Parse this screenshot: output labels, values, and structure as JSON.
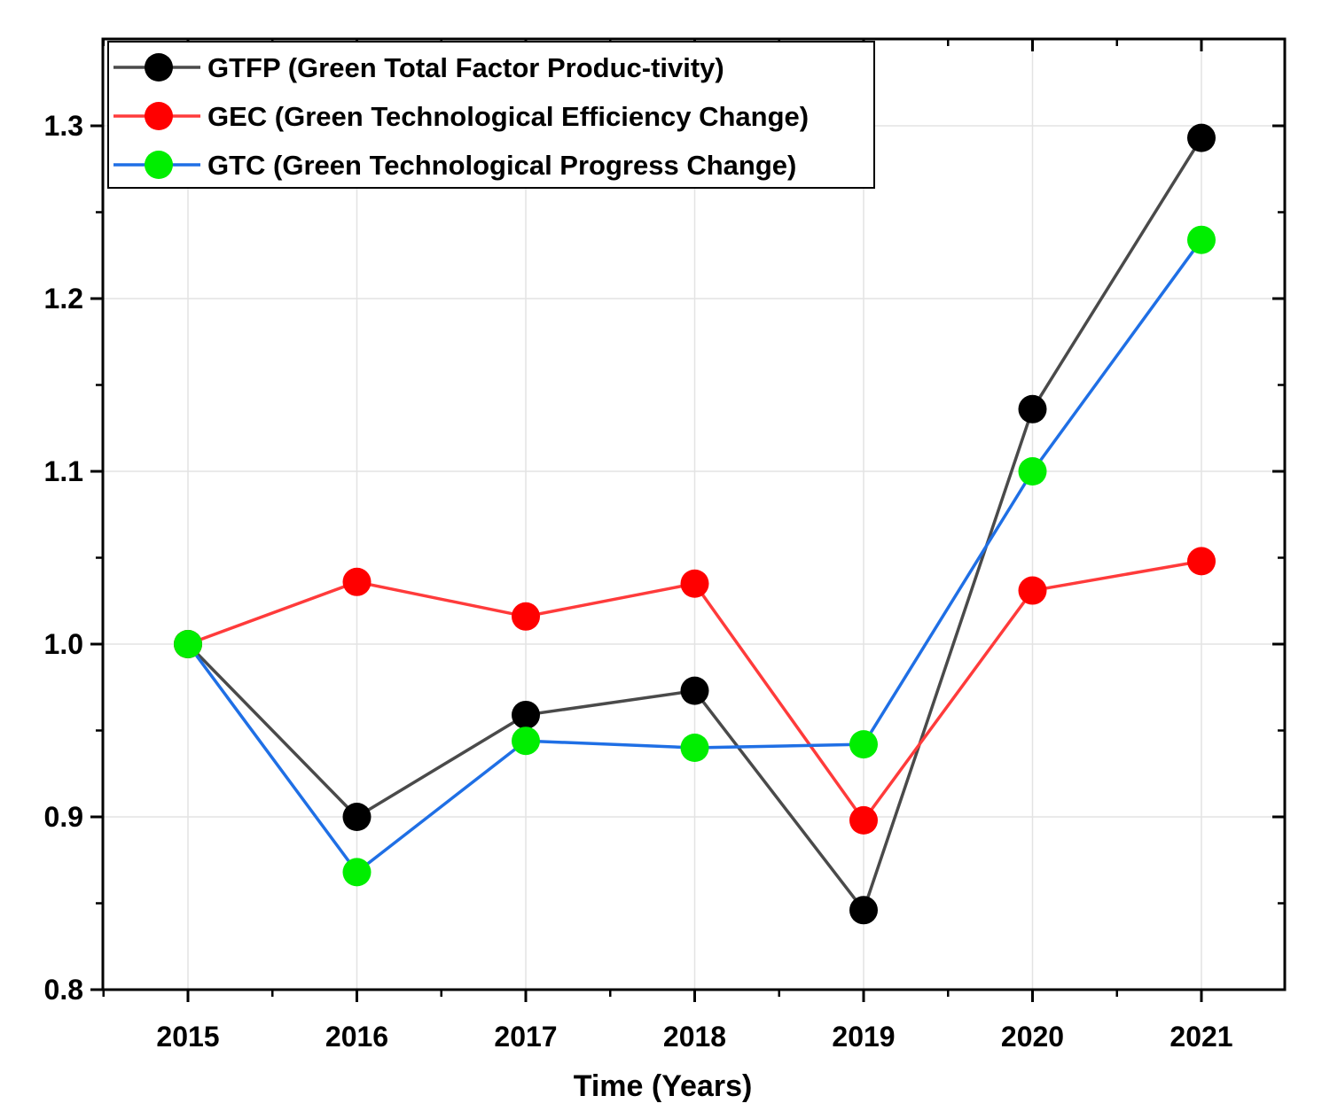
{
  "chart_data": {
    "type": "line",
    "title": "",
    "xlabel": "Time (Years)",
    "ylabel": "",
    "categories": [
      "2015",
      "2016",
      "2017",
      "2018",
      "2019",
      "2020",
      "2021"
    ],
    "ylim": [
      0.8,
      1.35
    ],
    "yticks": [
      "0.8",
      "0.9",
      "1.0",
      "1.1",
      "1.2",
      "1.3"
    ],
    "grid": true,
    "legend_position": "top-left",
    "series": [
      {
        "name": "GTFP (Green Total Factor Produc-tivity)",
        "line_color": "#4a4a4a",
        "marker_color": "#000000",
        "values": [
          1.0,
          0.9,
          0.959,
          0.973,
          0.846,
          1.136,
          1.293
        ]
      },
      {
        "name": "GEC (Green Technological Efficiency Change)",
        "line_color": "#ff3b3b",
        "marker_color": "#ff0000",
        "values": [
          1.0,
          1.036,
          1.016,
          1.035,
          0.898,
          1.031,
          1.048
        ]
      },
      {
        "name": "GTC (Green Technological Progress Change)",
        "line_color": "#1f6fe5",
        "marker_color": "#00ee00",
        "values": [
          1.0,
          0.868,
          0.944,
          0.94,
          0.942,
          1.1,
          1.234
        ]
      }
    ]
  }
}
